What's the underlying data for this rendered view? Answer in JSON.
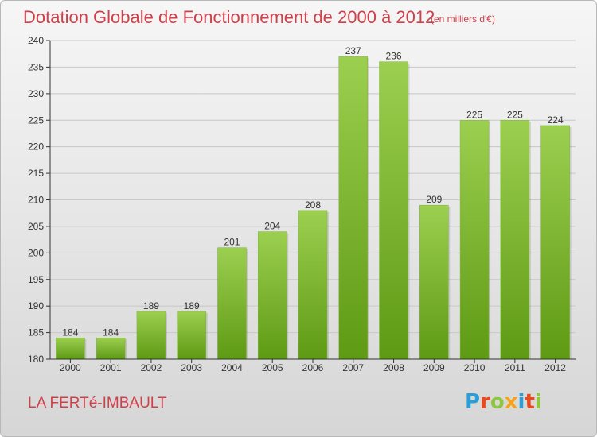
{
  "title": "Dotation Globale de Fonctionnement de 2000 à 2012",
  "subtitle": "(en milliers d'€)",
  "commune": "LA FERTé-IMBAULT",
  "logo": {
    "text": "Proxiti",
    "letter_colors": [
      "#2a9fd6",
      "#e8491d",
      "#8dc63f",
      "#f7a21b",
      "#2a9fd6",
      "#e8491d",
      "#8dc63f"
    ]
  },
  "colors": {
    "title": "#d0404a",
    "bar_top": "#9ccf50",
    "bar_bottom": "#5e9a14",
    "grid": "#c8c8c8",
    "axis": "#333333"
  },
  "chart_data": {
    "type": "bar",
    "title": "Dotation Globale de Fonctionnement de 2000 à 2012",
    "subtitle": "(en milliers d'€)",
    "categories": [
      "2000",
      "2001",
      "2002",
      "2003",
      "2004",
      "2005",
      "2006",
      "2007",
      "2008",
      "2009",
      "2010",
      "2011",
      "2012"
    ],
    "values": [
      184,
      184,
      189,
      189,
      201,
      204,
      208,
      237,
      236,
      209,
      225,
      225,
      224
    ],
    "xlabel": "",
    "ylabel": "",
    "ylim": [
      180,
      240
    ],
    "yticks": [
      180,
      185,
      190,
      195,
      200,
      205,
      210,
      215,
      220,
      225,
      230,
      235,
      240
    ],
    "grid": true,
    "data_labels": true
  }
}
